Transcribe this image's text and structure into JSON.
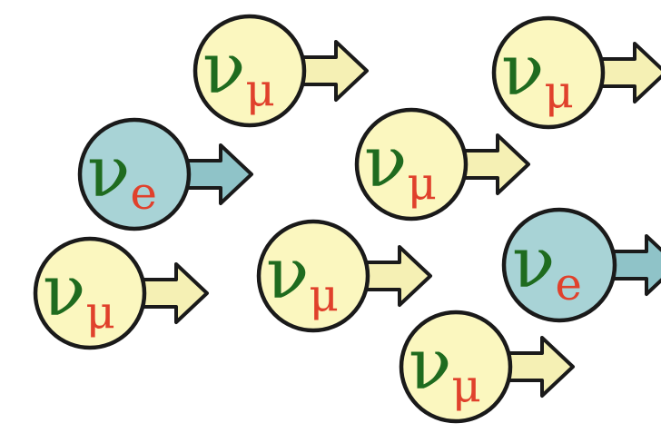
{
  "colors": {
    "muon_fill": "#fbf7bf",
    "electron_fill": "#a8d3d6",
    "outline": "#1a1a1a",
    "letter": "#1f6b1f",
    "subscript": "#e0412c",
    "arrow_muon_fill": "#f5f0b4",
    "arrow_electron_fill": "#8fc3c8"
  },
  "neutrinos": [
    {
      "flavor": "muon",
      "symbol": "ν",
      "subscript": "μ"
    },
    {
      "flavor": "muon",
      "symbol": "ν",
      "subscript": "μ"
    },
    {
      "flavor": "electron",
      "symbol": "ν",
      "subscript": "e"
    },
    {
      "flavor": "muon",
      "symbol": "ν",
      "subscript": "μ"
    },
    {
      "flavor": "muon",
      "symbol": "ν",
      "subscript": "μ"
    },
    {
      "flavor": "muon",
      "symbol": "ν",
      "subscript": "μ"
    },
    {
      "flavor": "electron",
      "symbol": "ν",
      "subscript": "e"
    },
    {
      "flavor": "muon",
      "symbol": "ν",
      "subscript": "μ"
    }
  ]
}
